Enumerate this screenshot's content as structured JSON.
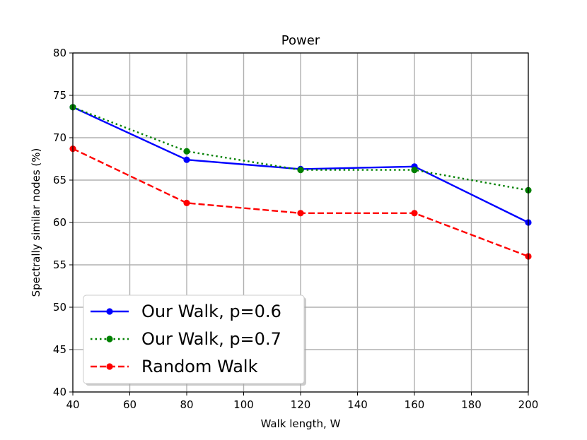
{
  "chart_data": {
    "type": "line",
    "title": "Power",
    "xlabel": "Walk length, W",
    "ylabel": "Spectrally similar nodes (%)",
    "x": [
      40,
      80,
      120,
      160,
      200
    ],
    "xlim": [
      40,
      200
    ],
    "ylim": [
      40,
      80
    ],
    "xticks": [
      40,
      60,
      80,
      100,
      120,
      140,
      160,
      180,
      200
    ],
    "yticks": [
      40,
      45,
      50,
      55,
      60,
      65,
      70,
      75,
      80
    ],
    "grid": true,
    "legend_position": "lower-left",
    "series": [
      {
        "name": "Our Walk, p=0.6",
        "values": [
          73.6,
          67.4,
          66.3,
          66.6,
          60.0
        ],
        "color": "#0000ff",
        "line_style": "solid",
        "marker": "circle"
      },
      {
        "name": "Our Walk, p=0.7",
        "values": [
          73.6,
          68.4,
          66.2,
          66.2,
          63.8
        ],
        "color": "#008000",
        "line_style": "dotted",
        "marker": "circle"
      },
      {
        "name": "Random Walk",
        "values": [
          68.7,
          62.3,
          61.1,
          61.1,
          56.0
        ],
        "color": "#ff0000",
        "line_style": "dashed",
        "marker": "circle"
      }
    ]
  }
}
